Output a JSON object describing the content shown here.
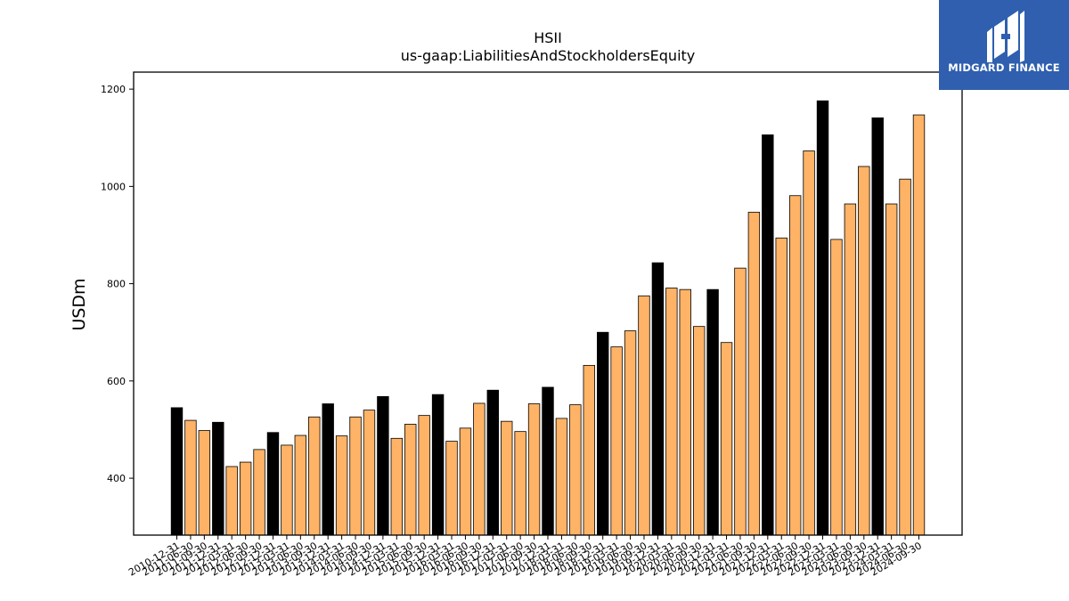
{
  "brand": {
    "name": "MIDGARD FINANCE",
    "color": "#2f5fae"
  },
  "chart_data": {
    "type": "bar",
    "title": "HSII",
    "subtitle": "us-gaap:LiabilitiesAndStockholdersEquity",
    "xlabel": "",
    "ylabel": "USDm",
    "ylim": [
      283,
      1235
    ],
    "yticks": [
      400,
      600,
      800,
      1000,
      1200
    ],
    "grid": false,
    "colors": {
      "annual": "#000000",
      "quarterly": "#ffb366",
      "edge": "#000000"
    },
    "categories": [
      "2010-12-31",
      "2011-06-30",
      "2011-09-30",
      "2011-12-31",
      "2012-03-31",
      "2012-06-30",
      "2012-09-30",
      "2012-12-31",
      "2013-03-31",
      "2013-06-30",
      "2013-09-30",
      "2013-12-31",
      "2014-03-31",
      "2014-06-30",
      "2014-09-30",
      "2014-12-31",
      "2015-03-31",
      "2015-06-30",
      "2015-09-30",
      "2015-12-31",
      "2016-03-31",
      "2016-06-30",
      "2016-09-30",
      "2016-12-31",
      "2017-03-31",
      "2017-06-30",
      "2017-09-30",
      "2017-12-31",
      "2018-03-31",
      "2018-06-30",
      "2018-09-30",
      "2018-12-31",
      "2019-03-31",
      "2019-06-30",
      "2019-09-30",
      "2019-12-31",
      "2020-03-31",
      "2020-06-30",
      "2020-09-30",
      "2020-12-31",
      "2021-03-31",
      "2021-06-30",
      "2021-09-30",
      "2021-12-31",
      "2022-03-31",
      "2022-06-30",
      "2022-09-30",
      "2022-12-31",
      "2023-03-31",
      "2023-06-30",
      "2023-09-30",
      "2023-12-31",
      "2024-03-31",
      "2024-06-30",
      "2024-09-30"
    ],
    "series": [
      {
        "values": [
          545,
          519,
          498,
          515,
          424,
          433,
          459,
          494,
          468,
          488,
          526,
          553,
          487,
          526,
          540,
          568,
          482,
          511,
          529,
          572,
          476,
          503,
          554,
          581,
          517,
          496,
          553,
          587,
          523,
          551,
          632,
          700,
          670,
          703,
          775,
          843,
          791,
          788,
          712,
          788,
          679,
          832,
          947,
          1106,
          894,
          981,
          1073,
          1176,
          891,
          964,
          1041,
          1141,
          964,
          1015,
          1147
        ],
        "annual_flags": [
          true,
          false,
          false,
          true,
          false,
          false,
          false,
          true,
          false,
          false,
          false,
          true,
          false,
          false,
          false,
          true,
          false,
          false,
          false,
          true,
          false,
          false,
          false,
          true,
          false,
          false,
          false,
          true,
          false,
          false,
          false,
          true,
          false,
          false,
          false,
          true,
          false,
          false,
          false,
          true,
          false,
          false,
          false,
          true,
          false,
          false,
          false,
          true,
          false,
          false,
          false,
          true,
          false,
          false,
          false
        ]
      }
    ]
  }
}
